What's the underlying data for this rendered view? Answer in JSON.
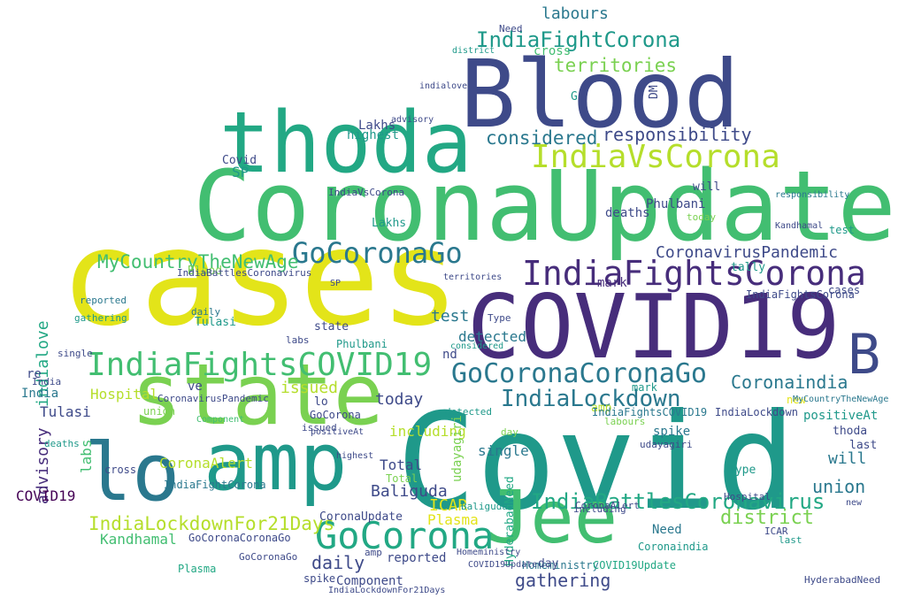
{
  "palette": {
    "yellow": "#e3e419",
    "lime": "#7ad151",
    "green": "#42be71",
    "teal": "#1f998a",
    "blue": "#2a788e",
    "indigo": "#3e4a89",
    "purple": "#472d7b",
    "dark": "#440154",
    "yellowgreen": "#b5de2b",
    "seafoam": "#22a884"
  },
  "words": [
    {
      "text": "Covid",
      "color": "teal"
    },
    {
      "text": "cases",
      "color": "yellow"
    },
    {
      "text": "CoronaUpdate",
      "color": "green"
    },
    {
      "text": "Blood",
      "color": "indigo"
    },
    {
      "text": "thoda",
      "color": "seafoam"
    },
    {
      "text": "COVID19",
      "color": "purple"
    },
    {
      "text": "state",
      "color": "lime"
    },
    {
      "text": "amp",
      "color": "teal"
    },
    {
      "text": "lo",
      "color": "blue"
    },
    {
      "text": "Jee",
      "color": "green"
    },
    {
      "text": "B",
      "color": "indigo"
    },
    {
      "text": "GoCorona",
      "color": "seafoam"
    },
    {
      "text": "IndiaFightsCOVID19",
      "color": "green"
    },
    {
      "text": "IndiaFightsCorona",
      "color": "purple"
    },
    {
      "text": "GoCoronaCoronaGo",
      "color": "blue"
    },
    {
      "text": "GoCoronaGo",
      "color": "blue"
    },
    {
      "text": "IndiaVsCorona",
      "color": "yellowgreen"
    },
    {
      "text": "IndiaBattlesCoronavirus",
      "color": "seafoam"
    },
    {
      "text": "IndiaLockdown",
      "color": "blue"
    },
    {
      "text": "IndiaFightCorona",
      "color": "teal"
    },
    {
      "text": "MyCountryTheNewAge",
      "color": "green"
    },
    {
      "text": "CoronavirusPandemic",
      "color": "indigo"
    },
    {
      "text": "IndiaLockdownFor21Days",
      "color": "yellowgreen"
    },
    {
      "text": "responsibility",
      "color": "indigo"
    },
    {
      "text": "territories",
      "color": "lime"
    },
    {
      "text": "considered",
      "color": "blue"
    },
    {
      "text": "labours",
      "color": "blue"
    },
    {
      "text": "Coronaindia",
      "color": "blue"
    },
    {
      "text": "district",
      "color": "lime"
    },
    {
      "text": "gathering",
      "color": "indigo"
    },
    {
      "text": "daily",
      "color": "indigo"
    },
    {
      "text": "union",
      "color": "blue"
    },
    {
      "text": "will",
      "color": "blue"
    },
    {
      "text": "issued",
      "color": "yellowgreen"
    },
    {
      "text": "test",
      "color": "blue"
    },
    {
      "text": "detected",
      "color": "blue"
    },
    {
      "text": "today",
      "color": "indigo"
    },
    {
      "text": "ICAR",
      "color": "yellow"
    },
    {
      "text": "Plasma",
      "color": "yellow"
    },
    {
      "text": "Kandhamal",
      "color": "green"
    },
    {
      "text": "Baliguda",
      "color": "indigo"
    },
    {
      "text": "Total",
      "color": "indigo"
    },
    {
      "text": "single",
      "color": "blue"
    },
    {
      "text": "including",
      "color": "yellowgreen"
    },
    {
      "text": "udayagiri",
      "color": "lime"
    },
    {
      "text": "CoronaAlert",
      "color": "yellowgreen"
    },
    {
      "text": "Hospital",
      "color": "yellowgreen"
    },
    {
      "text": "advisory",
      "color": "purple"
    },
    {
      "text": "indialove",
      "color": "seafoam"
    },
    {
      "text": "Tulasi",
      "color": "indigo"
    },
    {
      "text": "labs",
      "color": "green"
    },
    {
      "text": "spike",
      "color": "blue"
    },
    {
      "text": "positiveAt",
      "color": "teal"
    },
    {
      "text": "Lakhs",
      "color": "indigo"
    },
    {
      "text": "highest",
      "color": "teal"
    },
    {
      "text": "Phulbani",
      "color": "indigo"
    },
    {
      "text": "deaths",
      "color": "indigo"
    },
    {
      "text": "mark",
      "color": "purple"
    },
    {
      "text": "SP",
      "color": "teal"
    },
    {
      "text": "Covid",
      "color": "indigo"
    },
    {
      "text": "nd",
      "color": "indigo"
    },
    {
      "text": "re",
      "color": "indigo"
    },
    {
      "text": "ve",
      "color": "indigo"
    },
    {
      "text": "India",
      "color": "blue"
    },
    {
      "text": "COVID19",
      "color": "dark"
    },
    {
      "text": "Need",
      "color": "blue"
    },
    {
      "text": "HyderabadNeed",
      "color": "seafoam"
    },
    {
      "text": "Homeministry",
      "color": "blue"
    },
    {
      "text": "COVID19Update",
      "color": "seafoam"
    },
    {
      "text": "IndiaFightCorona",
      "color": "blue"
    },
    {
      "text": "IndiaLockdown",
      "color": "indigo"
    },
    {
      "text": "Component",
      "color": "indigo"
    },
    {
      "text": "reported",
      "color": "indigo"
    },
    {
      "text": "amp",
      "color": "yellowgreen"
    },
    {
      "text": "Type",
      "color": "teal"
    },
    {
      "text": "cross",
      "color": "green"
    },
    {
      "text": "thoda",
      "color": "indigo"
    },
    {
      "text": "last",
      "color": "indigo"
    },
    {
      "text": "new",
      "color": "yellow"
    },
    {
      "text": "day",
      "color": "indigo"
    },
    {
      "text": "Blood",
      "color": "lime"
    },
    {
      "text": "CoronaUpdate",
      "color": "indigo"
    },
    {
      "text": "GoCoronaCoronaGo",
      "color": "indigo"
    },
    {
      "text": "IndiaFightsCOVID19",
      "color": "blue"
    },
    {
      "text": "MyCountryTheNewAge",
      "color": "blue"
    },
    {
      "text": "IndiaVsCorona",
      "color": "indigo"
    },
    {
      "text": "IndiaFightsCorona",
      "color": "indigo"
    },
    {
      "text": "Coronaindia",
      "color": "teal"
    },
    {
      "text": "GoCorona",
      "color": "indigo"
    },
    {
      "text": "GoCoronaGo",
      "color": "indigo"
    },
    {
      "text": "IndiaBattlesCoronavirus",
      "color": "indigo"
    },
    {
      "text": "tally",
      "color": "teal"
    },
    {
      "text": "CoronavirusPandemic",
      "color": "indigo"
    },
    {
      "text": "Lakhs",
      "color": "teal"
    },
    {
      "text": "DM",
      "color": "indigo"
    },
    {
      "text": "G",
      "color": "teal"
    },
    {
      "text": "cases",
      "color": "indigo"
    },
    {
      "text": "state",
      "color": "indigo"
    },
    {
      "text": "test",
      "color": "teal"
    },
    {
      "text": "labours",
      "color": "lime"
    },
    {
      "text": "district",
      "color": "teal"
    },
    {
      "text": "Kandhamal",
      "color": "indigo"
    },
    {
      "text": "ICAR",
      "color": "indigo"
    },
    {
      "text": "lo",
      "color": "indigo"
    },
    {
      "text": "mark",
      "color": "teal"
    },
    {
      "text": "responsibility",
      "color": "blue"
    },
    {
      "text": "considered",
      "color": "teal"
    },
    {
      "text": "territories",
      "color": "indigo"
    },
    {
      "text": "advisory",
      "color": "indigo"
    },
    {
      "text": "union",
      "color": "lime"
    },
    {
      "text": "Component",
      "color": "green"
    },
    {
      "text": "deaths",
      "color": "teal"
    },
    {
      "text": "issued",
      "color": "indigo"
    },
    {
      "text": "IndiaLockdownFor21Days",
      "color": "indigo"
    },
    {
      "text": "positiveAt",
      "color": "indigo"
    },
    {
      "text": "single",
      "color": "indigo"
    },
    {
      "text": "Plasma",
      "color": "seafoam"
    },
    {
      "text": "reported",
      "color": "blue"
    },
    {
      "text": "gathering",
      "color": "teal"
    },
    {
      "text": "Tulasi",
      "color": "teal"
    },
    {
      "text": "udayagiri",
      "color": "indigo"
    },
    {
      "text": "Baliguda",
      "color": "teal"
    },
    {
      "text": "spike",
      "color": "indigo"
    },
    {
      "text": "Hospital",
      "color": "indigo"
    },
    {
      "text": "labs",
      "color": "indigo"
    },
    {
      "text": "including",
      "color": "indigo"
    },
    {
      "text": "today",
      "color": "lime"
    },
    {
      "text": "Total",
      "color": "lime"
    },
    {
      "text": "day",
      "color": "lime"
    },
    {
      "text": "Need",
      "color": "indigo"
    },
    {
      "text": "will",
      "color": "indigo"
    },
    {
      "text": "daily",
      "color": "blue"
    },
    {
      "text": "cross",
      "color": "indigo"
    },
    {
      "text": "amp",
      "color": "indigo"
    },
    {
      "text": "Type",
      "color": "indigo"
    },
    {
      "text": "India",
      "color": "indigo"
    },
    {
      "text": "highest",
      "color": "indigo"
    },
    {
      "text": "Phulbani",
      "color": "teal"
    },
    {
      "text": "new",
      "color": "indigo"
    },
    {
      "text": "last",
      "color": "teal"
    },
    {
      "text": "SP",
      "color": "indigo"
    },
    {
      "text": "HyderabadNeed",
      "color": "indigo"
    },
    {
      "text": "CoronaAlert",
      "color": "indigo"
    },
    {
      "text": "indialove",
      "color": "indigo"
    },
    {
      "text": "detected",
      "color": "teal"
    },
    {
      "text": "Homeministry",
      "color": "indigo"
    },
    {
      "text": "COVID19Update",
      "color": "indigo"
    }
  ]
}
